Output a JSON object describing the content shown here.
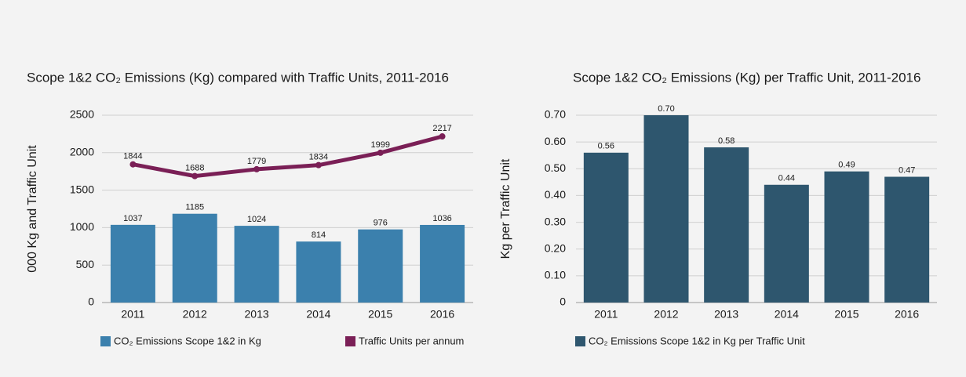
{
  "chart_data": [
    {
      "type": "combo",
      "title": "Scope 1&2 CO₂ Emissions (Kg) compared with Traffic Units, 2011-2016",
      "y_label": "000 Kg and Traffic Unit",
      "categories": [
        "2011",
        "2012",
        "2013",
        "2014",
        "2015",
        "2016"
      ],
      "series": [
        {
          "name": "CO₂ Emissions Scope 1&2 in Kg",
          "type": "bar",
          "color": "#3b80ad",
          "values": [
            1037,
            1185,
            1024,
            814,
            976,
            1036
          ]
        },
        {
          "name": "Traffic Units per annum",
          "type": "line",
          "color": "#7a1f56",
          "values": [
            1844,
            1688,
            1779,
            1834,
            1999,
            2217
          ]
        }
      ],
      "ylim": [
        0,
        2500
      ],
      "yticks": [
        0,
        500,
        1000,
        1500,
        2000,
        2500
      ],
      "grid": true
    },
    {
      "type": "bar",
      "title": "Scope 1&2 CO₂ Emissions (Kg) per Traffic Unit, 2011-2016",
      "y_label": "Kg per Traffic Unit",
      "categories": [
        "2011",
        "2012",
        "2013",
        "2014",
        "2015",
        "2016"
      ],
      "series": [
        {
          "name": "CO₂ Emissions Scope 1&2 in Kg per Traffic Unit",
          "type": "bar",
          "color": "#2e566e",
          "values": [
            0.56,
            0.7,
            0.58,
            0.44,
            0.49,
            0.47
          ],
          "value_labels": [
            "0.56",
            "0.70",
            "0.58",
            "0.44",
            "0.49",
            "0.47"
          ]
        }
      ],
      "ylim": [
        0,
        0.7
      ],
      "yticks": [
        0,
        {
          "value": 0.1,
          "label": "0.10"
        },
        {
          "value": 0.2,
          "label": "0.20"
        },
        {
          "value": 0.3,
          "label": "0.30"
        },
        {
          "value": 0.4,
          "label": "0.40"
        },
        {
          "value": 0.5,
          "label": "0.50"
        },
        {
          "value": 0.6,
          "label": "0.60"
        },
        {
          "value": 0.7,
          "label": "0.70"
        }
      ],
      "grid": true
    }
  ]
}
